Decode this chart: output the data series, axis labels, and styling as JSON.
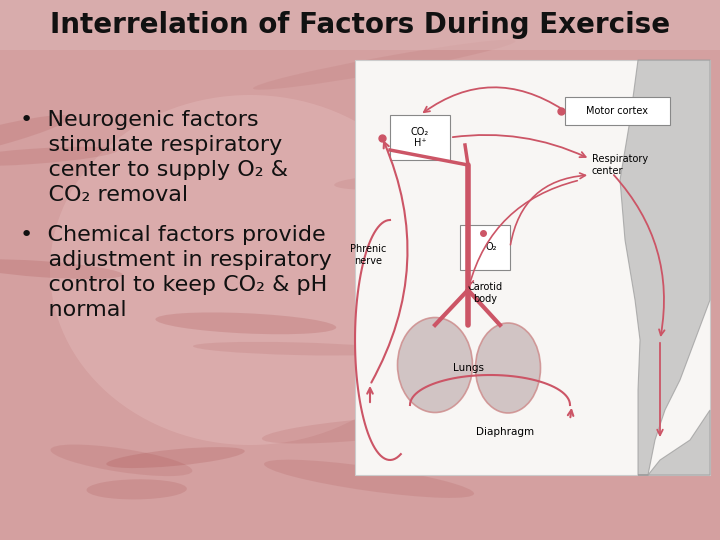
{
  "title": "Interrelation of Factors During Exercise",
  "title_fontsize": 20,
  "title_fontweight": "bold",
  "title_color": "#111111",
  "bg_color": "#d4a0a0",
  "bullet1_line1": "•  Neurogenic factors",
  "bullet1_line2": "    stimulate respiratory",
  "bullet1_line3": "    center to supply O₂ &",
  "bullet1_line4": "    CO₂ removal",
  "bullet2_line1": "•  Chemical factors provide",
  "bullet2_line2": "    adjustment in respiratory",
  "bullet2_line3": "    control to keep CO₂ & pH",
  "bullet2_line4": "    normal",
  "text_color": "#111111",
  "text_fontsize": 16,
  "diagram_bg": "#f8f6f4",
  "diagram_border": "#cccccc",
  "arrow_color": "#cc5566",
  "box_color": "#ffffff",
  "box_edge": "#888888",
  "lung_fill": "#c8b8b8",
  "lung_edge": "#cc8888",
  "body_fill": "#b8b8b8",
  "body_edge": "#999999"
}
